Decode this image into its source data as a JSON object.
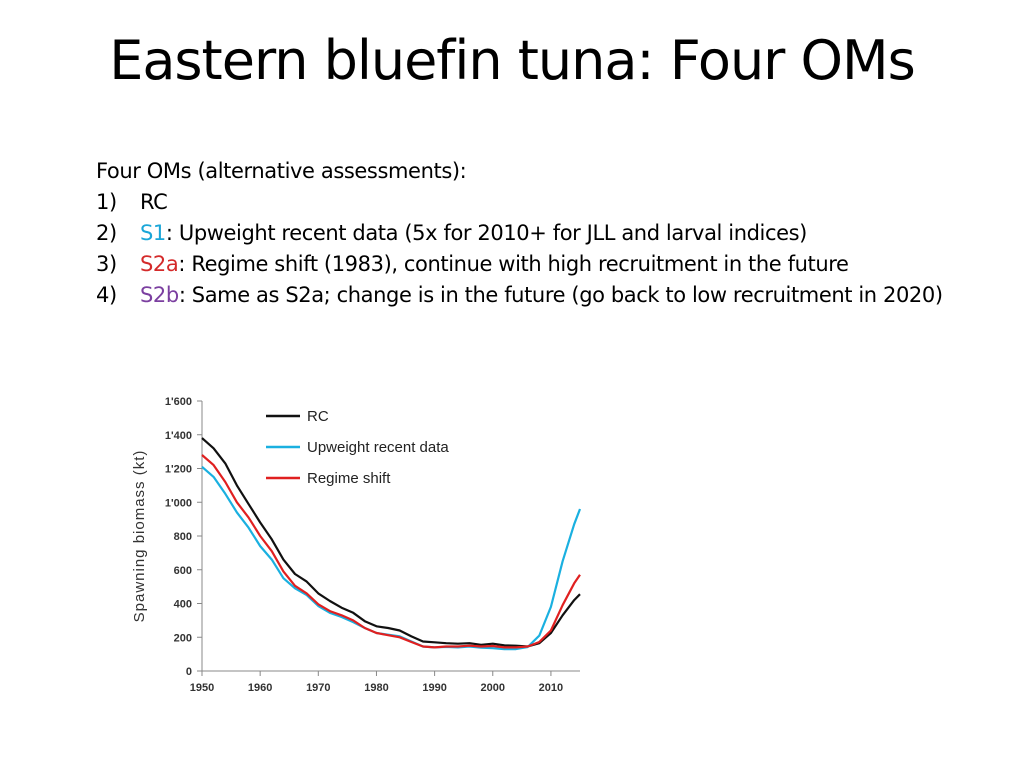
{
  "slide": {
    "title": "Eastern bluefin tuna: Four OMs",
    "intro": "Four OMs (alternative assessments):",
    "items": [
      {
        "num": "1)",
        "tag": "RC",
        "tag_color": "#000000",
        "text": ""
      },
      {
        "num": "2)",
        "tag": "S1",
        "tag_color": "#1aa6d8",
        "text": ": Upweight recent data (5x for 2010+ for JLL and larval indices)"
      },
      {
        "num": "3)",
        "tag": "S2a",
        "tag_color": "#d42a2a",
        "text": ": Regime shift (1983), continue with high recruitment in the future"
      },
      {
        "num": "4)",
        "tag": "S2b",
        "tag_color": "#7b3fa0",
        "text": ": Same as S2a; change is in the future (go back to low recruitment in 2020)"
      }
    ]
  },
  "chart_data": {
    "type": "line",
    "ylabel": "Spawning biomass (kt)",
    "xlim": [
      1950,
      2015
    ],
    "ylim": [
      0,
      1600
    ],
    "xticks": [
      1950,
      1960,
      1970,
      1980,
      1990,
      2000,
      2010
    ],
    "yticks": [
      0,
      200,
      400,
      600,
      800,
      1000,
      1200,
      1400,
      1600
    ],
    "ytick_labels": [
      "0",
      "200",
      "400",
      "600",
      "800",
      "1'000",
      "1'200",
      "1'400",
      "1'600"
    ],
    "grid": false,
    "legend_position": "top-right",
    "x": [
      1950,
      1952,
      1954,
      1956,
      1958,
      1960,
      1962,
      1964,
      1966,
      1968,
      1970,
      1972,
      1974,
      1976,
      1978,
      1980,
      1982,
      1984,
      1986,
      1988,
      1990,
      1992,
      1994,
      1996,
      1998,
      2000,
      2002,
      2004,
      2006,
      2008,
      2010,
      2012,
      2014,
      2015
    ],
    "series": [
      {
        "name": "RC",
        "color": "#111111",
        "values": [
          1380,
          1320,
          1230,
          1100,
          990,
          880,
          780,
          660,
          575,
          530,
          460,
          415,
          375,
          345,
          295,
          265,
          255,
          240,
          205,
          175,
          170,
          165,
          162,
          165,
          155,
          162,
          152,
          150,
          145,
          165,
          225,
          330,
          420,
          455
        ]
      },
      {
        "name": "Upweight recent data",
        "color": "#1ab0e0",
        "values": [
          1210,
          1150,
          1050,
          940,
          850,
          740,
          660,
          550,
          490,
          450,
          385,
          345,
          320,
          290,
          255,
          225,
          215,
          205,
          175,
          145,
          140,
          143,
          140,
          145,
          138,
          135,
          130,
          130,
          142,
          210,
          380,
          650,
          870,
          960
        ]
      },
      {
        "name": "Regime shift",
        "color": "#e02020",
        "values": [
          1280,
          1220,
          1120,
          1000,
          910,
          800,
          710,
          590,
          505,
          460,
          395,
          355,
          330,
          300,
          255,
          225,
          212,
          200,
          172,
          145,
          140,
          145,
          145,
          150,
          145,
          148,
          140,
          140,
          145,
          172,
          240,
          390,
          520,
          570
        ]
      }
    ]
  }
}
